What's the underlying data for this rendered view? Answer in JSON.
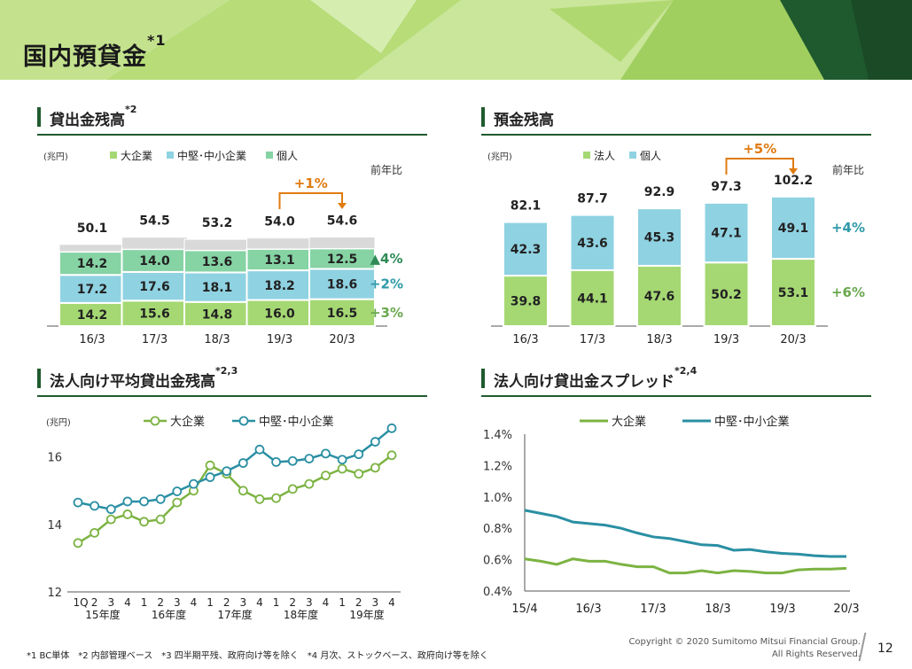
{
  "page_title": "国内預貸金",
  "page_title_sup": "*1",
  "colors": {
    "green": "#92d050",
    "blue": "#92d5e6",
    "gray": "#d9d9d9",
    "lgreen": "#7fcf96",
    "orange": "#e07b10",
    "teal": "#2e9aa8",
    "dgreen": "#1f5a2e",
    "line_green": "#7cb342",
    "line_blue": "#2a8fa3"
  },
  "sections": {
    "loans": {
      "title": "貸出金残高",
      "sup": "*2"
    },
    "deposits": {
      "title": "預金残高",
      "sup": ""
    },
    "avg": {
      "title": "法人向け平均貸出金残高",
      "sup": "*2,3"
    },
    "spread": {
      "title": "法人向け貸出金スプレッド",
      "sup": "*2,4"
    }
  },
  "chart_data": [
    {
      "type": "bar",
      "unit": "(兆円)",
      "categories": [
        "16/3",
        "17/3",
        "18/3",
        "19/3",
        "20/3"
      ],
      "series": [
        {
          "name": "大企業",
          "values": [
            14.2,
            15.6,
            14.8,
            16.0,
            16.5
          ],
          "yoy": "+3%"
        },
        {
          "name": "中堅･中小企業",
          "values": [
            17.2,
            17.6,
            18.1,
            18.2,
            18.6
          ],
          "yoy": "+2%"
        },
        {
          "name": "個人",
          "values": [
            14.2,
            14.0,
            13.6,
            13.1,
            12.5
          ],
          "yoy": "▲4%"
        }
      ],
      "totals": [
        50.1,
        54.5,
        53.2,
        54.0,
        54.6
      ],
      "change_label": "+1%",
      "yoy_header": "前年比"
    },
    {
      "type": "bar",
      "unit": "(兆円)",
      "categories": [
        "16/3",
        "17/3",
        "18/3",
        "19/3",
        "20/3"
      ],
      "series": [
        {
          "name": "法人",
          "values": [
            39.8,
            44.1,
            47.6,
            50.2,
            53.1
          ],
          "yoy": "+6%"
        },
        {
          "name": "個人",
          "values": [
            42.3,
            43.6,
            45.3,
            47.1,
            49.1
          ],
          "yoy": "+4%"
        }
      ],
      "totals": [
        82.1,
        87.7,
        92.9,
        97.3,
        102.2
      ],
      "change_label": "+5%",
      "yoy_header": "前年比"
    },
    {
      "type": "line",
      "unit": "(兆円)",
      "x_quarters": [
        "1Q",
        "2",
        "3",
        "4",
        "1",
        "2",
        "3",
        "4",
        "1",
        "2",
        "3",
        "4",
        "1",
        "2",
        "3",
        "4",
        "1",
        "2",
        "3",
        "4"
      ],
      "x_years": [
        "15年度",
        "16年度",
        "17年度",
        "18年度",
        "19年度"
      ],
      "yticks": [
        12,
        14,
        16
      ],
      "ylim": [
        12,
        17.2
      ],
      "series": [
        {
          "name": "大企業",
          "values": [
            13.45,
            13.75,
            14.15,
            14.3,
            14.08,
            14.15,
            14.65,
            15.0,
            15.75,
            15.5,
            15.0,
            14.75,
            14.78,
            15.05,
            15.2,
            15.45,
            15.65,
            15.5,
            15.68,
            16.05
          ]
        },
        {
          "name": "中堅･中小企業",
          "values": [
            14.65,
            14.55,
            14.45,
            14.68,
            14.68,
            14.75,
            14.98,
            15.2,
            15.4,
            15.58,
            15.82,
            16.22,
            15.85,
            15.88,
            15.95,
            16.1,
            15.92,
            16.08,
            16.45,
            16.85
          ]
        }
      ]
    },
    {
      "type": "line",
      "x_ticks": [
        "15/4",
        "16/3",
        "17/3",
        "18/3",
        "19/3",
        "20/3"
      ],
      "yticks": [
        "0.4%",
        "0.6%",
        "0.8%",
        "1.0%",
        "1.2%",
        "1.4%"
      ],
      "ylim": [
        0.4,
        1.4
      ],
      "series": [
        {
          "name": "大企業",
          "values": [
            0.605,
            0.59,
            0.57,
            0.605,
            0.59,
            0.59,
            0.57,
            0.555,
            0.555,
            0.515,
            0.515,
            0.53,
            0.515,
            0.53,
            0.525,
            0.515,
            0.515,
            0.535,
            0.54,
            0.54,
            0.545
          ]
        },
        {
          "name": "中堅･中小企業",
          "values": [
            0.915,
            0.895,
            0.875,
            0.84,
            0.83,
            0.82,
            0.8,
            0.77,
            0.745,
            0.735,
            0.715,
            0.695,
            0.69,
            0.66,
            0.665,
            0.65,
            0.64,
            0.635,
            0.625,
            0.62,
            0.62
          ]
        }
      ]
    }
  ],
  "footnote": "*1 BC単体　*2 内部管理ベース　*3 四半期平残、政府向け等を除く　*4 月次、ストックベース、政府向け等を除く",
  "copyright_line1": "Copyright © 2020 Sumitomo Mitsui Financial Group.",
  "copyright_line2": "All Rights Reserved.",
  "page_number": "12"
}
